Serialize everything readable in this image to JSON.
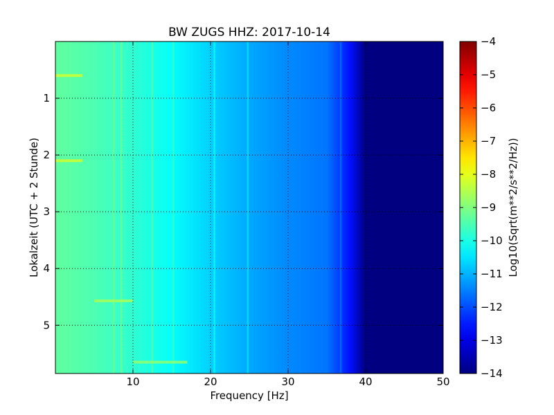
{
  "chart_data": {
    "type": "heatmap",
    "title": "BW ZUGS HHZ: 2017-10-14",
    "xlabel": "Frequency [Hz]",
    "ylabel": "Lokalzeit (UTC + 2 Stunde)",
    "xlim": [
      0,
      50
    ],
    "ylim": [
      5.85,
      0
    ],
    "xticks": [
      10,
      20,
      30,
      40,
      50
    ],
    "xtick_labels": [
      "10",
      "20",
      "30",
      "40",
      "50"
    ],
    "yticks": [
      1,
      2,
      3,
      4,
      5
    ],
    "ytick_labels": [
      "1",
      "2",
      "3",
      "4",
      "5"
    ],
    "grid": true,
    "colormap": "jet",
    "colorbar": {
      "label": "Log10(Sqrt(m**2/s**2/Hz))",
      "range": [
        -14,
        -4
      ],
      "ticks": [
        -4,
        -5,
        -6,
        -7,
        -8,
        -9,
        -10,
        -11,
        -12,
        -13,
        -14
      ],
      "tick_labels": [
        "−4",
        "−5",
        "−6",
        "−7",
        "−8",
        "−9",
        "−10",
        "−11",
        "−12",
        "−13",
        "−14"
      ]
    },
    "spectrum_profile": {
      "frequency_hz": [
        0,
        5,
        10,
        15,
        20,
        25,
        30,
        35,
        38,
        40,
        50
      ],
      "value_log10": [
        -9.3,
        -9.5,
        -9.8,
        -10.2,
        -10.7,
        -11.1,
        -11.4,
        -11.6,
        -12.6,
        -14,
        -14
      ]
    },
    "spectral_lines_hz": [
      7.5,
      8.5,
      12.5,
      15.2,
      20.5,
      24.8,
      36.8
    ],
    "bright_bands": [
      {
        "time_h": 0.6,
        "freq_range_hz": [
          0,
          3.5
        ],
        "value_log10": -8.2
      },
      {
        "time_h": 2.1,
        "freq_range_hz": [
          0,
          3.5
        ],
        "value_log10": -8.2
      },
      {
        "time_h": 4.57,
        "freq_range_hz": [
          5,
          10
        ],
        "value_log10": -8.6
      },
      {
        "time_h": 5.65,
        "freq_range_hz": [
          10,
          17
        ],
        "value_log10": -8.8
      }
    ]
  }
}
